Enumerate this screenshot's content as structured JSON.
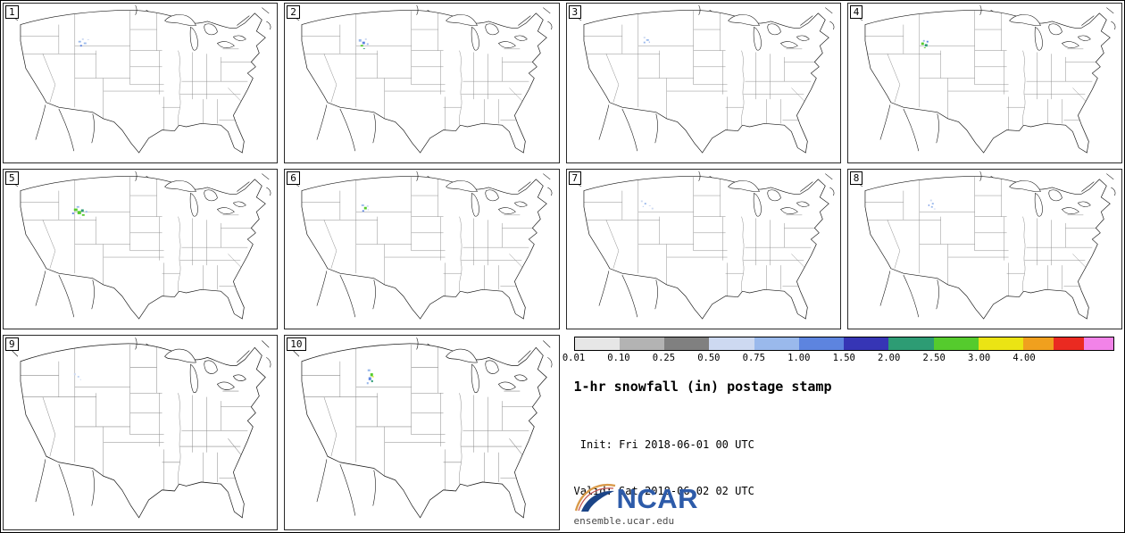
{
  "info": {
    "title": "1-hr snowfall (in) postage stamp",
    "init_line": " Init: Fri 2018-06-01 00 UTC",
    "valid_line": "Valid: Sat 2018-06-02 02 UTC",
    "logo_text": "NCAR",
    "footer": "ensemble.ucar.edu"
  },
  "colorbar": {
    "tick_labels": [
      "0.01",
      "0.10",
      "0.25",
      "0.50",
      "0.75",
      "1.00",
      "1.50",
      "2.00",
      "2.50",
      "3.00",
      "4.00"
    ],
    "tick_spacing_pct": 8.333,
    "segments": [
      {
        "c": "#e6e6e6",
        "w": 8.333
      },
      {
        "c": "#b3b3b3",
        "w": 8.333
      },
      {
        "c": "#808080",
        "w": 8.333
      },
      {
        "c": "#cdd9f1",
        "w": 8.333
      },
      {
        "c": "#9ab9ec",
        "w": 8.333
      },
      {
        "c": "#5d84df",
        "w": 8.333
      },
      {
        "c": "#3635b5",
        "w": 8.333
      },
      {
        "c": "#2d9c74",
        "w": 8.333
      },
      {
        "c": "#55cb2d",
        "w": 8.333
      },
      {
        "c": "#ebe414",
        "w": 8.337
      },
      {
        "c": "#f0a01e",
        "w": 5.57
      },
      {
        "c": "#ea2a21",
        "w": 5.57
      },
      {
        "c": "#f283e8",
        "w": 5.55
      }
    ]
  },
  "map": {
    "coast_color": "#1a1a1a",
    "state_color": "#8a8a8a",
    "snow_colors": {
      "pb": "#cdd9f1",
      "lb": "#9ab9ec",
      "mb": "#5d84df",
      "tl": "#2d9c74",
      "gr": "#55cb2d",
      "yl": "#ebe414"
    }
  },
  "panels": [
    {
      "label": "1",
      "dots": [
        [
          84,
          46,
          3,
          2,
          "lb"
        ],
        [
          88,
          43,
          2,
          2,
          "pb"
        ],
        [
          90,
          48,
          3,
          2,
          "lb"
        ],
        [
          86,
          51,
          2,
          2,
          "mb"
        ],
        [
          94,
          44,
          2,
          1,
          "pb"
        ]
      ]
    },
    {
      "label": "2",
      "dots": [
        [
          83,
          44,
          3,
          3,
          "lb"
        ],
        [
          87,
          47,
          3,
          3,
          "mb"
        ],
        [
          85,
          51,
          3,
          2,
          "gr"
        ],
        [
          90,
          43,
          2,
          2,
          "pb"
        ],
        [
          92,
          49,
          2,
          2,
          "lb"
        ],
        [
          88,
          55,
          2,
          1,
          "tl"
        ]
      ]
    },
    {
      "label": "3",
      "dots": [
        [
          86,
          41,
          2,
          2,
          "pb"
        ],
        [
          89,
          44,
          3,
          2,
          "lb"
        ],
        [
          86,
          47,
          2,
          2,
          "lb"
        ],
        [
          92,
          47,
          1,
          1,
          "mb"
        ]
      ]
    },
    {
      "label": "4",
      "dots": [
        [
          82,
          48,
          3,
          3,
          "gr"
        ],
        [
          86,
          50,
          3,
          3,
          "tl"
        ],
        [
          84,
          45,
          2,
          2,
          "lb"
        ],
        [
          88,
          46,
          2,
          2,
          "mb"
        ],
        [
          85,
          54,
          2,
          1,
          "gr"
        ]
      ]
    },
    {
      "label": "5",
      "dots": [
        [
          79,
          48,
          4,
          3,
          "gr"
        ],
        [
          83,
          51,
          4,
          4,
          "gr"
        ],
        [
          87,
          49,
          3,
          3,
          "tl"
        ],
        [
          82,
          45,
          3,
          2,
          "lb"
        ],
        [
          88,
          55,
          3,
          2,
          "gr"
        ],
        [
          92,
          51,
          2,
          2,
          "lb"
        ],
        [
          77,
          53,
          2,
          2,
          "mb"
        ],
        [
          85,
          59,
          2,
          1,
          "pb"
        ]
      ]
    },
    {
      "label": "6",
      "dots": [
        [
          86,
          43,
          3,
          2,
          "lb"
        ],
        [
          89,
          46,
          3,
          3,
          "gr"
        ],
        [
          92,
          44,
          2,
          2,
          "pb"
        ],
        [
          87,
          50,
          2,
          2,
          "mb"
        ],
        [
          93,
          49,
          1,
          1,
          "lb"
        ]
      ]
    },
    {
      "label": "7",
      "dots": [
        [
          83,
          38,
          2,
          2,
          "pb"
        ],
        [
          87,
          41,
          2,
          2,
          "lb"
        ],
        [
          92,
          44,
          2,
          1,
          "pb"
        ],
        [
          95,
          47,
          2,
          2,
          "pb"
        ],
        [
          85,
          45,
          1,
          1,
          "lb"
        ]
      ]
    },
    {
      "label": "8",
      "dots": [
        [
          92,
          37,
          2,
          2,
          "pb"
        ],
        [
          94,
          41,
          2,
          2,
          "lb"
        ],
        [
          93,
          45,
          2,
          2,
          "lb"
        ],
        [
          96,
          48,
          2,
          1,
          "pb"
        ],
        [
          90,
          43,
          1,
          2,
          "mb"
        ]
      ]
    },
    {
      "label": "9",
      "dots": [
        [
          79,
          38,
          2,
          2,
          "pb"
        ],
        [
          83,
          41,
          2,
          1,
          "lb"
        ],
        [
          86,
          44,
          1,
          1,
          "pb"
        ]
      ]
    },
    {
      "label": "10",
      "dots": [
        [
          93,
          34,
          3,
          2,
          "lb"
        ],
        [
          96,
          38,
          3,
          3,
          "gr"
        ],
        [
          94,
          42,
          3,
          3,
          "mb"
        ],
        [
          97,
          45,
          2,
          2,
          "tl"
        ],
        [
          92,
          47,
          2,
          2,
          "lb"
        ],
        [
          98,
          41,
          2,
          1,
          "yl"
        ]
      ]
    }
  ],
  "chart_data": {
    "type": "heatmap",
    "title": "1-hr snowfall (in) postage stamp",
    "subtitle_init": "Init: Fri 2018-06-01 00 UTC",
    "subtitle_valid": "Valid: Sat 2018-06-02 02 UTC",
    "units": "in",
    "ensemble_members": [
      "1",
      "2",
      "3",
      "4",
      "5",
      "6",
      "7",
      "8",
      "9",
      "10"
    ],
    "colorbar_levels": [
      0.01,
      0.1,
      0.25,
      0.5,
      0.75,
      1.0,
      1.5,
      2.0,
      2.5,
      3.0,
      4.0
    ],
    "region": "CONUS",
    "feature": "light 1-hr snowfall over northern Rockies (MT/ID/WY) in all 10 members",
    "source_label": "ensemble.ucar.edu"
  }
}
